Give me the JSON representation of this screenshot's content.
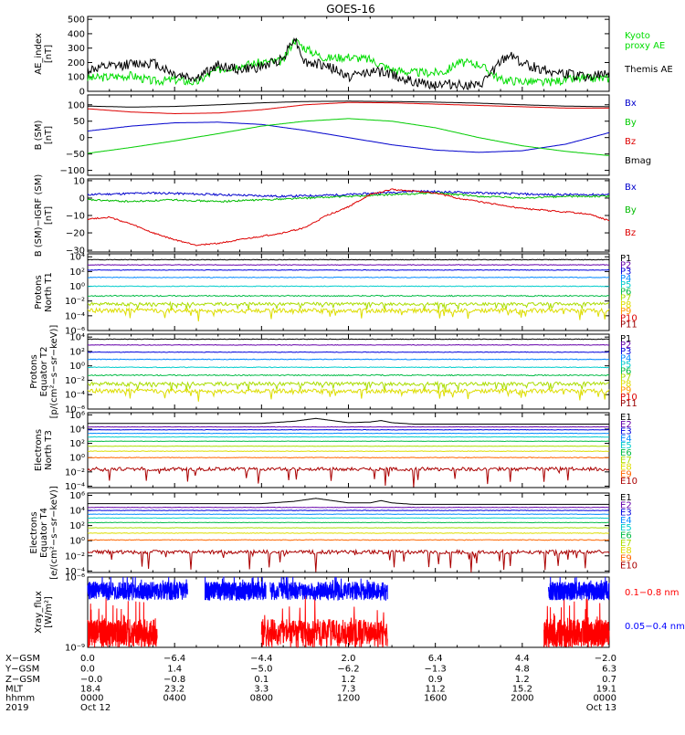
{
  "title": "GOES-16",
  "chart_data": [
    {
      "id": "ae",
      "type": "line",
      "ylabel": "AE_index",
      "yunit": "[nT]",
      "ylim": [
        0,
        520
      ],
      "yscale": "linear",
      "ticks": [
        {
          "v": 500,
          "t": "500"
        },
        {
          "v": 400,
          "t": "400"
        },
        {
          "v": 300,
          "t": "300"
        },
        {
          "v": 200,
          "t": "200"
        },
        {
          "v": 100,
          "t": "100"
        },
        {
          "v": 0,
          "t": "0"
        }
      ],
      "series": [
        {
          "name": "Kyoto proxy AE",
          "name_lines": [
            "Kyoto",
            "proxy AE"
          ],
          "color": "#00dd00",
          "kind": "noise",
          "base": 110,
          "amp": 60,
          "seed": 3,
          "x": [
            0,
            1,
            2,
            3,
            4,
            5,
            5.5,
            6,
            7,
            8,
            9,
            9.5,
            10,
            10.5,
            11,
            12,
            13,
            14,
            15,
            16,
            16.5,
            17,
            18,
            19,
            20,
            21,
            22,
            23,
            24
          ],
          "y": [
            90,
            100,
            110,
            70,
            80,
            60,
            110,
            150,
            180,
            200,
            210,
            360,
            300,
            260,
            230,
            240,
            220,
            150,
            130,
            130,
            140,
            200,
            190,
            80,
            70,
            60,
            80,
            90,
            90
          ]
        },
        {
          "name": "Themis AE",
          "color": "#000000",
          "kind": "noise",
          "base": 130,
          "amp": 70,
          "seed": 7,
          "x": [
            0,
            1,
            2,
            3,
            4,
            5,
            6,
            7,
            8,
            9,
            9.5,
            10,
            11,
            12,
            13,
            14,
            15,
            16,
            17,
            18,
            19,
            19.5,
            20,
            21,
            22,
            23,
            24
          ],
          "y": [
            150,
            170,
            190,
            200,
            120,
            90,
            180,
            150,
            170,
            230,
            380,
            200,
            180,
            100,
            140,
            120,
            60,
            50,
            50,
            30,
            200,
            260,
            190,
            150,
            120,
            100,
            120
          ]
        }
      ]
    },
    {
      "id": "bsm",
      "type": "line",
      "ylabel": "B (SM)",
      "yunit": "[nT]",
      "ylim": [
        -115,
        130
      ],
      "yscale": "linear",
      "ticks": [
        {
          "v": 100,
          "t": "100"
        },
        {
          "v": 50,
          "t": "50"
        },
        {
          "v": 0,
          "t": "0"
        },
        {
          "v": -50,
          "t": "−50"
        },
        {
          "v": -100,
          "t": "−100"
        }
      ],
      "series": [
        {
          "name": "Bx",
          "color": "#0000cc",
          "kind": "smooth",
          "x": [
            0,
            2,
            4,
            6,
            8,
            10,
            12,
            14,
            16,
            18,
            20,
            22,
            24
          ],
          "y": [
            20,
            35,
            45,
            47,
            40,
            22,
            0,
            -22,
            -38,
            -45,
            -40,
            -20,
            15
          ]
        },
        {
          "name": "By",
          "color": "#00cc00",
          "kind": "smooth",
          "x": [
            0,
            2,
            4,
            6,
            8,
            10,
            12,
            14,
            16,
            18,
            20,
            22,
            24
          ],
          "y": [
            -48,
            -30,
            -10,
            12,
            35,
            50,
            58,
            50,
            30,
            0,
            -25,
            -42,
            -55
          ]
        },
        {
          "name": "Bz",
          "color": "#dd0000",
          "kind": "smooth",
          "x": [
            0,
            2,
            4,
            6,
            8,
            10,
            12,
            14,
            16,
            18,
            20,
            22,
            24
          ],
          "y": [
            88,
            78,
            73,
            75,
            85,
            100,
            107,
            106,
            102,
            98,
            94,
            90,
            90
          ]
        },
        {
          "name": "Bmag",
          "color": "#000000",
          "kind": "smooth",
          "x": [
            0,
            2,
            4,
            6,
            8,
            10,
            12,
            14,
            16,
            18,
            20,
            22,
            24
          ],
          "y": [
            96,
            93,
            95,
            100,
            106,
            110,
            111,
            110,
            108,
            105,
            100,
            96,
            94
          ]
        }
      ]
    },
    {
      "id": "digrf",
      "type": "line",
      "ylabel": "B (SM)−IGRF (SM)",
      "yunit": "[nT]",
      "ylim": [
        -31,
        11
      ],
      "yscale": "linear",
      "ticks": [
        {
          "v": 10,
          "t": "10"
        },
        {
          "v": 0,
          "t": "0"
        },
        {
          "v": -10,
          "t": "−10"
        },
        {
          "v": -20,
          "t": "−20"
        },
        {
          "v": -30,
          "t": "−30"
        }
      ],
      "series": [
        {
          "name": "Bx",
          "color": "#0000cc",
          "kind": "noise",
          "base": 0,
          "amp": 1.2,
          "seed": 11,
          "x": [
            0,
            3,
            6,
            9,
            12,
            15,
            18,
            21,
            24
          ],
          "y": [
            2,
            3,
            2,
            1,
            2,
            4,
            3,
            2,
            2
          ]
        },
        {
          "name": "By",
          "color": "#00bb00",
          "kind": "noise",
          "base": 0,
          "amp": 1.0,
          "seed": 13,
          "x": [
            0,
            2,
            4,
            6,
            8,
            10,
            12,
            14,
            16,
            18,
            20,
            22,
            24
          ],
          "y": [
            -1,
            -2,
            -1,
            -2,
            -1,
            0,
            1,
            2,
            3,
            1,
            0,
            1,
            1
          ]
        },
        {
          "name": "Bz",
          "color": "#dd0000",
          "kind": "noise",
          "base": 0,
          "amp": 0.8,
          "seed": 17,
          "x": [
            0,
            1,
            2,
            3,
            4,
            5,
            6,
            7,
            8,
            9,
            10,
            11,
            12,
            13,
            14,
            15,
            16,
            17,
            18,
            19,
            20,
            21,
            22,
            23,
            24
          ],
          "y": [
            -12,
            -11,
            -15,
            -20,
            -24,
            -27,
            -26,
            -24,
            -22,
            -20,
            -17,
            -10,
            -5,
            2,
            5,
            4,
            3,
            0,
            -2,
            -4,
            -6,
            -7,
            -8,
            -9,
            -13
          ]
        }
      ]
    },
    {
      "id": "pt1",
      "type": "line",
      "ylabel": "Protons",
      "ylabel2": "North T1",
      "ylim": [
        -6,
        4.4
      ],
      "yscale": "log10",
      "ticks": [
        {
          "v": 4,
          "t": "10⁴"
        },
        {
          "v": 2,
          "t": "10²"
        },
        {
          "v": 0,
          "t": "10⁰"
        },
        {
          "v": -2,
          "t": "10⁻²"
        },
        {
          "v": -4,
          "t": "10⁻⁴"
        },
        {
          "v": -6,
          "t": "10⁻⁶"
        }
      ],
      "series": [
        {
          "name": "P1",
          "color": "#000000",
          "kind": "flat",
          "level": 3.6,
          "amp": 0.04
        },
        {
          "name": "P2",
          "color": "#6600aa",
          "kind": "flat",
          "level": 2.9,
          "amp": 0.04
        },
        {
          "name": "P3",
          "color": "#0000dd",
          "kind": "flat",
          "level": 2.2,
          "amp": 0.04
        },
        {
          "name": "P4",
          "color": "#0088ff",
          "kind": "flat",
          "level": 1.2,
          "amp": 0.05
        },
        {
          "name": "P5",
          "color": "#00cccc",
          "kind": "flat",
          "level": 0.0,
          "amp": 0.05
        },
        {
          "name": "P6",
          "color": "#00bb44",
          "kind": "flat",
          "level": -1.3,
          "amp": 0.08
        },
        {
          "name": "P7",
          "color": "#aadd00",
          "kind": "flat",
          "level": -2.4,
          "amp": 0.2
        },
        {
          "name": "P8",
          "color": "#dddd00",
          "kind": "flat",
          "level": -3.3,
          "amp": 0.3
        },
        {
          "name": "P9",
          "color": "#ff9900",
          "kind": "none"
        },
        {
          "name": "P10",
          "color": "#dd0000",
          "kind": "none"
        },
        {
          "name": "P11",
          "color": "#990000",
          "kind": "none"
        }
      ]
    },
    {
      "id": "pt2",
      "type": "line",
      "ylabel": "Protons",
      "ylabel2": "Equator T2",
      "yunit": "[p/(cm²−s−sr−keV)]",
      "ylim": [
        -6,
        4.4
      ],
      "yscale": "log10",
      "ticks": [
        {
          "v": 4,
          "t": "10⁴"
        },
        {
          "v": 2,
          "t": "10²"
        },
        {
          "v": 0,
          "t": "10⁰"
        },
        {
          "v": -2,
          "t": "10⁻²"
        },
        {
          "v": -4,
          "t": "10⁻⁴"
        },
        {
          "v": -6,
          "t": "10⁻⁶"
        }
      ],
      "series": [
        {
          "name": "P1",
          "color": "#000000",
          "kind": "flat",
          "level": 3.7,
          "amp": 0.04
        },
        {
          "name": "P2",
          "color": "#6600aa",
          "kind": "flat",
          "level": 2.9,
          "amp": 0.04
        },
        {
          "name": "P3",
          "color": "#0000dd",
          "kind": "flat",
          "level": 1.9,
          "amp": 0.04
        },
        {
          "name": "P4",
          "color": "#0088ff",
          "kind": "flat",
          "level": 0.9,
          "amp": 0.05
        },
        {
          "name": "P5",
          "color": "#00cccc",
          "kind": "flat",
          "level": -0.2,
          "amp": 0.05
        },
        {
          "name": "P6",
          "color": "#00bb44",
          "kind": "flat",
          "level": -1.3,
          "amp": 0.08
        },
        {
          "name": "P7",
          "color": "#aadd00",
          "kind": "flat",
          "level": -2.5,
          "amp": 0.25
        },
        {
          "name": "P8",
          "color": "#dddd00",
          "kind": "flat",
          "level": -3.5,
          "amp": 0.3
        },
        {
          "name": "P9",
          "color": "#ff9900",
          "kind": "none"
        },
        {
          "name": "P10",
          "color": "#dd0000",
          "kind": "none"
        },
        {
          "name": "P11",
          "color": "#990000",
          "kind": "none"
        }
      ]
    },
    {
      "id": "et3",
      "type": "line",
      "ylabel": "Electrons",
      "ylabel2": "North T3",
      "ylim": [
        -4.2,
        6.3
      ],
      "yscale": "log10",
      "ticks": [
        {
          "v": 6,
          "t": "10⁶"
        },
        {
          "v": 4,
          "t": "10⁴"
        },
        {
          "v": 2,
          "t": "10²"
        },
        {
          "v": 0,
          "t": "10⁰"
        },
        {
          "v": -2,
          "t": "10⁻²"
        },
        {
          "v": -4,
          "t": "10⁻⁴"
        }
      ],
      "series": [
        {
          "name": "E1",
          "color": "#000000",
          "kind": "smooth",
          "x": [
            0,
            8,
            9.5,
            10.5,
            12,
            13,
            13.5,
            14,
            15,
            24
          ],
          "y": [
            4.8,
            4.8,
            5.1,
            5.5,
            4.9,
            5.0,
            5.2,
            4.9,
            4.7,
            4.7
          ]
        },
        {
          "name": "E2",
          "color": "#6600aa",
          "kind": "flat",
          "level": 4.3,
          "amp": 0.03
        },
        {
          "name": "E3",
          "color": "#0000dd",
          "kind": "flat",
          "level": 3.9,
          "amp": 0.03
        },
        {
          "name": "E4",
          "color": "#0088ff",
          "kind": "flat",
          "level": 3.4,
          "amp": 0.03
        },
        {
          "name": "E5",
          "color": "#00cccc",
          "kind": "flat",
          "level": 2.9,
          "amp": 0.03
        },
        {
          "name": "E6",
          "color": "#00bb44",
          "kind": "flat",
          "level": 2.3,
          "amp": 0.03
        },
        {
          "name": "E7",
          "color": "#aadd00",
          "kind": "flat",
          "level": 1.6,
          "amp": 0.03
        },
        {
          "name": "E8",
          "color": "#dddd00",
          "kind": "flat",
          "level": 0.9,
          "amp": 0.04
        },
        {
          "name": "E9",
          "color": "#ff6600",
          "kind": "flat",
          "level": 0.0,
          "amp": 0.05
        },
        {
          "name": "E10",
          "color": "#aa0000",
          "kind": "spiky",
          "level": -1.6,
          "amp": 0.5,
          "seed": 19
        }
      ]
    },
    {
      "id": "et4",
      "type": "line",
      "ylabel": "Electrons",
      "ylabel2": "Equator T4",
      "yunit": "[e/(cm²−s−sr−keV)]",
      "ylim": [
        -4.2,
        6.3
      ],
      "yscale": "log10",
      "ticks": [
        {
          "v": 6,
          "t": "10⁶"
        },
        {
          "v": 4,
          "t": "10⁴"
        },
        {
          "v": 2,
          "t": "10²"
        },
        {
          "v": 0,
          "t": "10⁰"
        },
        {
          "v": -2,
          "t": "10⁻²"
        },
        {
          "v": -4,
          "t": "10⁻⁴"
        }
      ],
      "series": [
        {
          "name": "E1",
          "color": "#000000",
          "kind": "smooth",
          "x": [
            0,
            8,
            9.5,
            10.5,
            12,
            13,
            13.5,
            14,
            15,
            24
          ],
          "y": [
            4.9,
            4.9,
            5.2,
            5.6,
            5.0,
            5.0,
            5.3,
            5.0,
            4.8,
            4.8
          ]
        },
        {
          "name": "E2",
          "color": "#6600aa",
          "kind": "flat",
          "level": 4.4,
          "amp": 0.03
        },
        {
          "name": "E3",
          "color": "#0000dd",
          "kind": "flat",
          "level": 4.0,
          "amp": 0.03
        },
        {
          "name": "E4",
          "color": "#0088ff",
          "kind": "flat",
          "level": 3.5,
          "amp": 0.03
        },
        {
          "name": "E5",
          "color": "#00cccc",
          "kind": "flat",
          "level": 3.0,
          "amp": 0.03
        },
        {
          "name": "E6",
          "color": "#00bb44",
          "kind": "flat",
          "level": 2.4,
          "amp": 0.03
        },
        {
          "name": "E7",
          "color": "#aadd00",
          "kind": "flat",
          "level": 1.7,
          "amp": 0.03
        },
        {
          "name": "E8",
          "color": "#dddd00",
          "kind": "flat",
          "level": 1.0,
          "amp": 0.04
        },
        {
          "name": "E9",
          "color": "#ff6600",
          "kind": "flat",
          "level": 0.1,
          "amp": 0.05
        },
        {
          "name": "E10",
          "color": "#aa0000",
          "kind": "spiky",
          "level": -1.5,
          "amp": 0.5,
          "seed": 23
        }
      ]
    },
    {
      "id": "xray",
      "type": "line",
      "ylabel": "Xray_flux",
      "yunit": "[W/m²]",
      "ylim": [
        -9,
        -6
      ],
      "yscale": "log10",
      "ticks": [
        {
          "v": -6,
          "t": "10⁻⁶"
        },
        {
          "v": -9,
          "t": "10⁻⁹"
        }
      ],
      "series": [
        {
          "name": "0.1−0.8 nm",
          "color": "#ff0000",
          "kind": "bursty",
          "level": -8.4,
          "amp": 0.6,
          "seed": 29,
          "segments": [
            [
              0,
              3.2
            ],
            [
              8.0,
              13.8
            ],
            [
              21.0,
              24
            ]
          ]
        },
        {
          "name": "0.05−0.4 nm",
          "color": "#0000ff",
          "kind": "bursty",
          "level": -6.6,
          "amp": 0.4,
          "seed": 31,
          "segments": [
            [
              0,
              4.6
            ],
            [
              5.4,
              8.2
            ],
            [
              8.4,
              13.8
            ],
            [
              21.2,
              24
            ]
          ]
        }
      ]
    }
  ],
  "x_axis": {
    "xlim": [
      0,
      24
    ],
    "ticks": [
      0,
      4,
      8,
      12,
      16,
      20,
      24
    ]
  },
  "ephemeris": {
    "labels": [
      "X−GSM",
      "Y−GSM",
      "Z−GSM",
      "MLT",
      "hhmm",
      "2019"
    ],
    "columns": [
      [
        "0.0",
        "0.0",
        "−0.0",
        "18.4",
        "0000",
        "Oct 12"
      ],
      [
        "−6.4",
        "1.4",
        "−0.8",
        "23.2",
        "0400",
        ""
      ],
      [
        "−4.4",
        "−5.0",
        "0.1",
        "3.3",
        "0800",
        ""
      ],
      [
        "2.0",
        "−6.2",
        "1.2",
        "7.3",
        "1200",
        ""
      ],
      [
        "6.4",
        "−1.3",
        "0.9",
        "11.2",
        "1600",
        ""
      ],
      [
        "4.4",
        "4.8",
        "1.2",
        "15.2",
        "2000",
        ""
      ],
      [
        "−2.0",
        "6.3",
        "0.7",
        "19.1",
        "0000",
        "Oct 13"
      ]
    ]
  }
}
